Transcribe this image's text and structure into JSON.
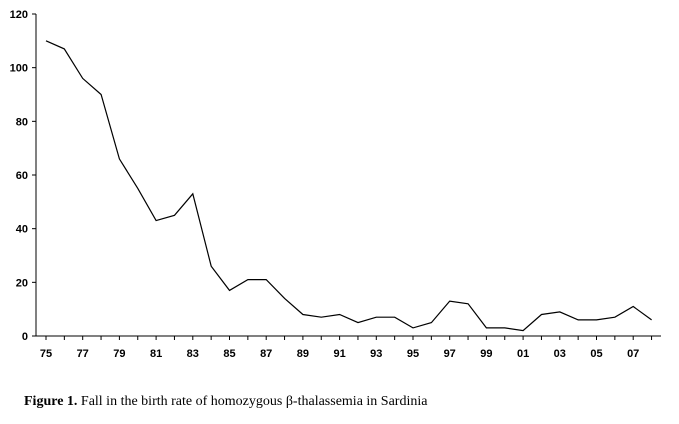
{
  "chart_data": {
    "type": "line",
    "x": [
      1975,
      1976,
      1977,
      1978,
      1979,
      1980,
      1981,
      1982,
      1983,
      1984,
      1985,
      1986,
      1987,
      1988,
      1989,
      1990,
      1991,
      1992,
      1993,
      1994,
      1995,
      1996,
      1997,
      1998,
      1999,
      2000,
      2001,
      2002,
      2003,
      2004,
      2005,
      2006,
      2007,
      2008
    ],
    "series": [
      {
        "values": [
          110,
          107,
          96,
          90,
          66,
          55,
          43,
          45,
          53,
          26,
          17,
          21,
          21,
          14,
          8,
          7,
          8,
          5,
          7,
          7,
          3,
          5,
          13,
          12,
          3,
          3,
          2,
          8,
          9,
          6,
          6,
          7,
          11,
          6
        ]
      }
    ],
    "xticks": [
      "75",
      "77",
      "79",
      "81",
      "83",
      "85",
      "87",
      "89",
      "91",
      "93",
      "95",
      "97",
      "99",
      "01",
      "03",
      "05",
      "07"
    ],
    "yticks": [
      "0",
      "20",
      "40",
      "60",
      "80",
      "100",
      "120"
    ],
    "ylim": [
      0,
      120
    ],
    "grid": false,
    "line_color": "#000000"
  },
  "caption": {
    "label": "Figure 1.",
    "text": " Fall in the birth rate of homozygous β-thalassemia in Sardinia"
  }
}
